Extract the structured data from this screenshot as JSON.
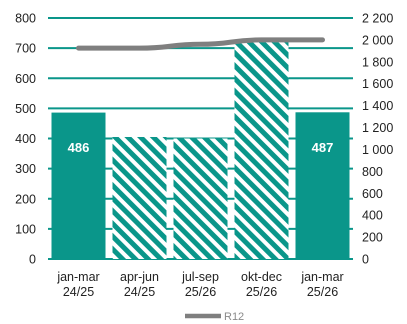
{
  "chart_data": {
    "type": "bar",
    "categories": [
      [
        "jan-mar",
        "24/25"
      ],
      [
        "apr-jun",
        "24/25"
      ],
      [
        "jul-sep",
        "25/26"
      ],
      [
        "okt-dec",
        "25/26"
      ],
      [
        "jan-mar",
        "25/26"
      ]
    ],
    "series": [
      {
        "kind": "bar",
        "axis": "left",
        "values": [
          486,
          405,
          400,
          720,
          487
        ],
        "fill": [
          "solid",
          "hatched",
          "hatched",
          "hatched",
          "solid"
        ],
        "data_labels": [
          "486",
          null,
          null,
          null,
          "487"
        ]
      },
      {
        "kind": "line",
        "axis": "right",
        "name": "R12",
        "values": [
          1925,
          1925,
          1960,
          2000,
          2000
        ]
      }
    ],
    "ylim": [
      0,
      800
    ],
    "y_ticks": [
      0,
      100,
      200,
      300,
      400,
      500,
      600,
      700,
      800
    ],
    "y2lim": [
      0,
      2200
    ],
    "y2_ticks": [
      "0",
      "200",
      "400",
      "600",
      "800",
      "1 000",
      "1 200",
      "1 400",
      "1 600",
      "1 800",
      "2 000",
      "2 200"
    ],
    "grid": true,
    "legend_position": "bottom",
    "colors": {
      "bar": "#0a968a",
      "line": "#7f7f7f",
      "grid": "#0a968a",
      "text": "#222222"
    }
  }
}
